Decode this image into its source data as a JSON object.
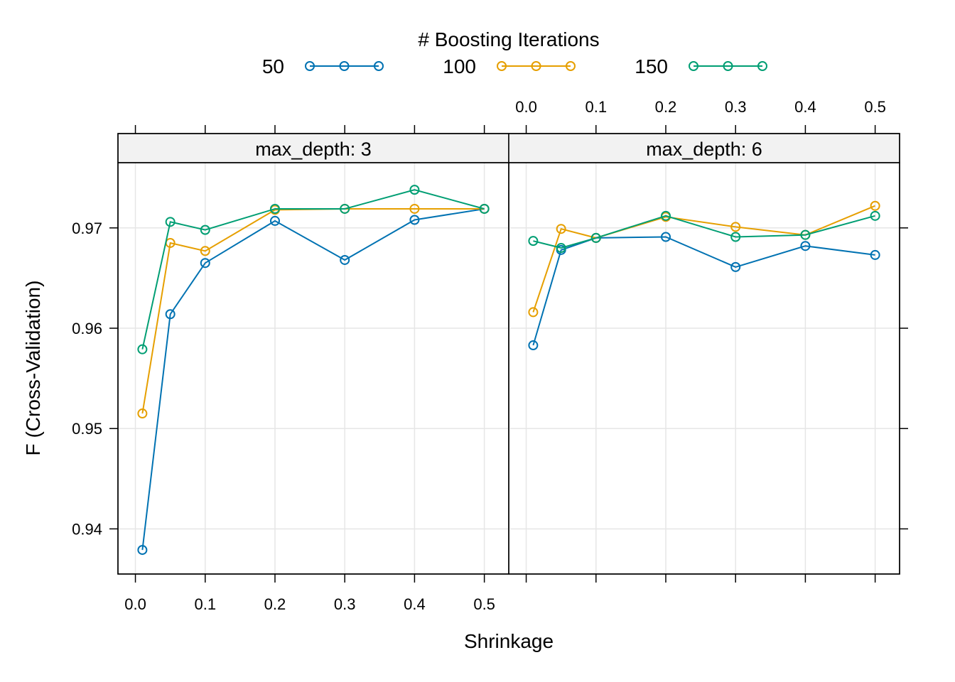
{
  "chart_data": {
    "type": "line",
    "legend": {
      "title": "# Boosting Iterations",
      "position": "top"
    },
    "xlabel": "Shrinkage",
    "ylabel": "F (Cross-Validation)",
    "xlim": [
      -0.025,
      0.535
    ],
    "ylim": [
      0.9355,
      0.9765
    ],
    "x_ticks": [
      0.0,
      0.1,
      0.2,
      0.3,
      0.4,
      0.5
    ],
    "x_tick_labels": [
      "0.0",
      "0.1",
      "0.2",
      "0.3",
      "0.4",
      "0.5"
    ],
    "y_ticks": [
      0.94,
      0.95,
      0.96,
      0.97
    ],
    "y_tick_labels": [
      "0.94",
      "0.95",
      "0.96",
      "0.97"
    ],
    "grid": true,
    "series_meta": [
      {
        "name": "50",
        "color": "#0072B2"
      },
      {
        "name": "100",
        "color": "#E69F00"
      },
      {
        "name": "150",
        "color": "#009E73"
      }
    ],
    "panels": [
      {
        "strip": "max_depth: 3",
        "x": [
          0.01,
          0.05,
          0.1,
          0.2,
          0.3,
          0.4,
          0.5
        ],
        "series": [
          {
            "name": "50",
            "values": [
              0.9379,
              0.9614,
              0.9665,
              0.9707,
              0.9668,
              0.9708,
              0.9719
            ]
          },
          {
            "name": "100",
            "values": [
              0.9515,
              0.9685,
              0.9677,
              0.9718,
              0.9719,
              0.9719,
              0.9719
            ]
          },
          {
            "name": "150",
            "values": [
              0.9579,
              0.9706,
              0.9698,
              0.9719,
              0.9719,
              0.9738,
              0.9719
            ]
          }
        ]
      },
      {
        "strip": "max_depth: 6",
        "x": [
          0.01,
          0.05,
          0.1,
          0.2,
          0.3,
          0.4,
          0.5
        ],
        "series": [
          {
            "name": "50",
            "values": [
              0.9583,
              0.9678,
              0.969,
              0.9691,
              0.9661,
              0.9682,
              0.9673
            ]
          },
          {
            "name": "100",
            "values": [
              0.9616,
              0.9699,
              0.969,
              0.9711,
              0.9701,
              0.9693,
              0.9722
            ]
          },
          {
            "name": "150",
            "values": [
              0.9687,
              0.968,
              0.969,
              0.9712,
              0.9691,
              0.9693,
              0.9712
            ]
          }
        ]
      }
    ]
  }
}
